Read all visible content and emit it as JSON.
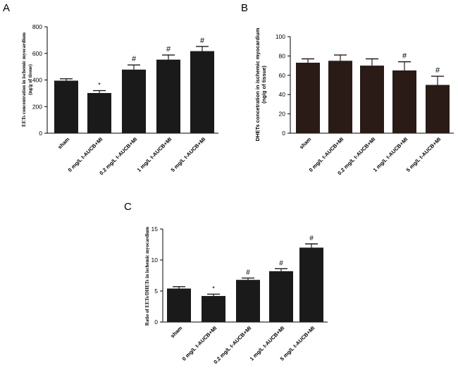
{
  "chart_data": [
    {
      "panel": "A",
      "type": "bar",
      "title": "",
      "ylabel_lines": [
        "EETs concentration in ischemic myocardium",
        "(ng/g of tissue)"
      ],
      "xlabel": "",
      "categories": [
        "sham",
        "0 mg/L t-AUCB+MI",
        "0.2 mg/L t-AUCB+MI",
        "1 mg/L t-AUCB+MI",
        "5 mg/L t-AUCB+MI"
      ],
      "values": [
        395,
        302,
        478,
        553,
        617
      ],
      "errors": [
        14,
        18,
        35,
        35,
        35
      ],
      "annotations": [
        "",
        "*",
        "#",
        "#",
        "#"
      ],
      "ylim": [
        0,
        800
      ],
      "yticks": [
        0,
        200,
        400,
        600,
        800
      ],
      "ytick_labels": [
        "0",
        "200",
        "400",
        "600",
        "800"
      ],
      "bar_color": "#1a1a1a"
    },
    {
      "panel": "B",
      "type": "bar",
      "title": "",
      "ylabel_lines": [
        "DHETs concetration in ischemic myocardium",
        "(ng/g of tissue)"
      ],
      "xlabel": "",
      "categories": [
        "sham",
        "0 mg/L t-AUCB+MI",
        "0.2 mg/L t-AUCB+MI",
        "1 mg/L t-AUCB+MI",
        "5 mg/L t-AUCB+MI"
      ],
      "values": [
        73,
        75,
        70,
        65,
        50
      ],
      "errors": [
        4,
        6,
        7,
        9,
        9
      ],
      "annotations": [
        "",
        "",
        "",
        "#",
        "#"
      ],
      "ylim": [
        0,
        100
      ],
      "yticks": [
        0,
        20,
        40,
        60,
        80,
        100
      ],
      "ytick_labels": [
        "0",
        "20",
        "40",
        "60",
        "80",
        "100"
      ],
      "bar_color": "#2a1b16"
    },
    {
      "panel": "C",
      "type": "bar",
      "title": "",
      "ylabel_lines": [
        "Ratio of EETs/DHETs in ischemic myocardium"
      ],
      "xlabel": "",
      "categories": [
        "sham",
        "0 mg/L t-AUCB+MI",
        "0.2 mg/L t-AUCB+MI",
        "1 mg/L t-AUCB+MI",
        "5 mg/L t-AUCB+MI"
      ],
      "values": [
        5.4,
        4.2,
        6.8,
        8.2,
        12.0
      ],
      "errors": [
        0.3,
        0.3,
        0.3,
        0.4,
        0.6
      ],
      "annotations": [
        "",
        "*",
        "#",
        "#",
        "#"
      ],
      "ylim": [
        0,
        15
      ],
      "yticks": [
        0,
        5,
        10,
        15
      ],
      "ytick_labels": [
        "0",
        "5",
        "10",
        "15"
      ],
      "bar_color": "#1a1a1a"
    }
  ]
}
